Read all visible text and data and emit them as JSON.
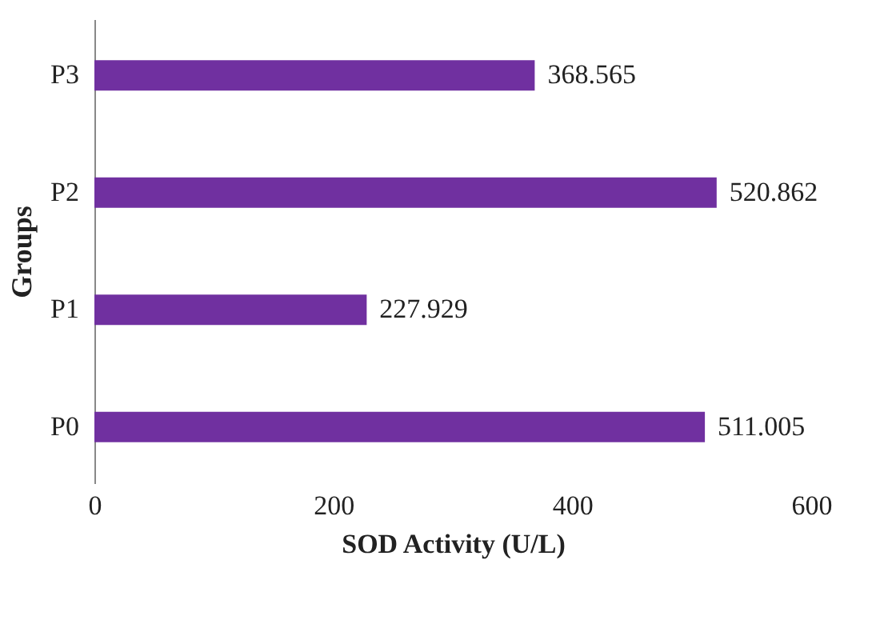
{
  "chart_data": {
    "type": "bar",
    "orientation": "horizontal",
    "xlabel": "SOD Activity (U/L)",
    "ylabel": "Groups",
    "categories": [
      "P3",
      "P2",
      "P1",
      "P0"
    ],
    "values": [
      368.565,
      520.862,
      227.929,
      511.005
    ],
    "color": "#7030a0",
    "xlim": [
      0,
      600
    ],
    "xticks": [
      0,
      200,
      400,
      600
    ],
    "grid": false,
    "data_labels": true
  }
}
